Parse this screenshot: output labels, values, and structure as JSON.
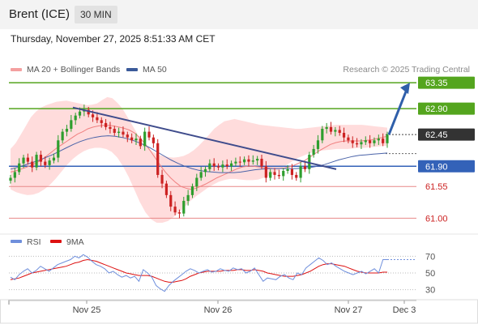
{
  "header": {
    "instrument": "Brent (ICE)",
    "timeframe": "30 MIN"
  },
  "datetime": "Thursday, November 27, 2025 8:51:33 AM CET",
  "legend": [
    {
      "label": "MA 20 + Bollinger Bands",
      "color": "#f4a0a0"
    },
    {
      "label": "MA 50",
      "color": "#3b5a9a"
    }
  ],
  "copyright": "Research © 2025 Trading Central",
  "colors": {
    "up": "#2e9e2e",
    "down": "#cc2222",
    "resistance": "#54a51e",
    "pivot": "#3362b8",
    "support": "#e88888",
    "last": "#333333",
    "band": "#ffd6d6",
    "rsi": "#6f8fdc",
    "rsi_ma": "#dd1111"
  },
  "chart_data": [
    {
      "type": "candlestick",
      "x_labels": [
        "Nov 25",
        "Nov 26",
        "Nov 27",
        "Dec 3"
      ],
      "ylim": [
        60.85,
        63.45
      ],
      "levels": [
        {
          "value": 63.35,
          "label": "63.35",
          "kind": "resistance"
        },
        {
          "value": 62.9,
          "label": "62.90",
          "kind": "resistance"
        },
        {
          "value": 62.45,
          "label": "62.45",
          "kind": "last"
        },
        {
          "value": 61.9,
          "label": "61.90",
          "kind": "pivot"
        },
        {
          "value": 61.55,
          "label": "61.55",
          "kind": "support"
        },
        {
          "value": 61.0,
          "label": "61.00",
          "kind": "support"
        }
      ],
      "close": [
        61.7,
        61.8,
        61.95,
        62.05,
        61.98,
        61.88,
        62.1,
        61.98,
        61.92,
        62.0,
        62.05,
        62.35,
        62.5,
        62.55,
        62.7,
        62.78,
        62.85,
        62.88,
        62.8,
        62.75,
        62.7,
        62.65,
        62.58,
        62.55,
        62.48,
        62.5,
        62.45,
        62.4,
        62.35,
        62.38,
        62.25,
        62.5,
        62.4,
        62.3,
        61.75,
        61.6,
        61.4,
        61.2,
        61.1,
        61.08,
        61.3,
        61.4,
        61.55,
        61.7,
        61.8,
        61.85,
        61.95,
        61.9,
        61.88,
        61.93,
        61.9,
        61.95,
        61.98,
        61.97,
        62.02,
        61.98,
        62.0,
        62.03,
        61.9,
        61.7,
        61.8,
        61.75,
        61.73,
        61.82,
        61.85,
        61.75,
        61.7,
        61.9,
        61.85,
        62.1,
        62.2,
        62.35,
        62.55,
        62.58,
        62.5,
        62.53,
        62.48,
        62.4,
        62.35,
        62.3,
        62.28,
        62.32,
        62.35,
        62.3,
        62.35,
        62.38,
        62.3,
        62.45
      ],
      "ma20": [
        61.8,
        61.82,
        61.85,
        61.88,
        61.92,
        61.96,
        62.01,
        62.08,
        62.15,
        62.22,
        62.28,
        62.34,
        62.4,
        62.46,
        62.5,
        62.55,
        62.58,
        62.6,
        62.61,
        62.61,
        62.6,
        62.58,
        62.56,
        62.53,
        62.48,
        62.4,
        62.3,
        62.18,
        62.05,
        61.92,
        61.8,
        61.7,
        61.62,
        61.55,
        61.52,
        61.5,
        61.52,
        61.56,
        61.6,
        61.65,
        61.7,
        61.74,
        61.78,
        61.82,
        61.86,
        61.89,
        61.9,
        61.9,
        61.89,
        61.88,
        61.87,
        61.86,
        61.86,
        61.87,
        61.89,
        61.92,
        61.96,
        62.0,
        62.06,
        62.12,
        62.18,
        62.23,
        62.28,
        62.31,
        62.33,
        62.34,
        62.34,
        62.34,
        62.34,
        62.35,
        62.36,
        62.38,
        62.4,
        62.42
      ],
      "bb_upper": [
        62.2,
        62.3,
        62.45,
        62.6,
        62.75,
        62.85,
        62.92,
        62.96,
        62.99,
        63.02,
        63.03,
        63.04,
        63.02,
        63.0,
        62.98,
        62.96,
        62.97,
        62.99,
        63.05,
        63.1,
        63.08,
        63.0,
        62.9,
        62.75,
        62.6,
        62.45,
        62.3,
        62.22,
        62.15,
        62.1,
        62.08,
        62.06,
        62.05,
        62.06,
        62.08,
        62.12,
        62.18,
        62.26,
        62.35,
        62.45,
        62.55,
        62.62,
        62.68,
        62.7,
        62.72,
        62.7,
        62.68,
        62.66,
        62.64,
        62.62,
        62.61,
        62.6,
        62.59,
        62.58,
        62.57,
        62.56,
        62.55,
        62.55,
        62.56,
        62.57,
        62.58,
        62.59,
        62.6,
        62.61,
        62.62,
        62.62,
        62.62,
        62.62,
        62.62,
        62.62,
        62.61,
        62.6,
        62.59,
        62.58,
        62.57
      ],
      "bb_lower": [
        61.5,
        61.45,
        61.42,
        61.4,
        61.41,
        61.44,
        61.5,
        61.58,
        61.68,
        61.8,
        61.92,
        62.02,
        62.1,
        62.16,
        62.2,
        62.22,
        62.22,
        62.2,
        62.15,
        62.05,
        61.9,
        61.72,
        61.5,
        61.28,
        61.1,
        60.98,
        60.92,
        60.92,
        60.95,
        61.02,
        61.1,
        61.2,
        61.3,
        61.38,
        61.45,
        61.52,
        61.58,
        61.63,
        61.66,
        61.68,
        61.68,
        61.67,
        61.66,
        61.66,
        61.67,
        61.7,
        61.74,
        61.79,
        61.85,
        61.92,
        61.98,
        62.04,
        62.08,
        62.12,
        62.15,
        62.17,
        62.18,
        62.19,
        62.2,
        62.2,
        62.2,
        62.21,
        62.22,
        62.22,
        62.23,
        62.24,
        62.25,
        62.26
      ],
      "ma50": [
        61.85,
        61.88,
        61.92,
        61.96,
        62.0,
        62.05,
        62.1,
        62.16,
        62.22,
        62.28,
        62.33,
        62.37,
        62.4,
        62.42,
        62.43,
        62.42,
        62.4,
        62.37,
        62.33,
        62.28,
        62.22,
        62.15,
        62.08,
        62.01,
        61.95,
        61.9,
        61.86,
        61.83,
        61.81,
        61.8,
        61.79,
        61.79,
        61.79,
        61.8,
        61.82,
        61.84,
        61.85,
        61.86,
        61.86,
        61.86,
        61.86,
        61.86,
        61.87,
        61.88,
        61.9,
        61.93,
        61.97,
        62.01,
        62.04,
        62.07,
        62.09,
        62.1,
        62.11,
        62.12,
        62.13
      ],
      "arrow": {
        "from": 62.45,
        "to": 63.35
      },
      "trendline": {
        "from": 62.92,
        "to": 61.85
      }
    },
    {
      "type": "line",
      "title": "RSI",
      "ylim": [
        20,
        80
      ],
      "y_ticks": [
        70,
        50,
        30
      ],
      "series": [
        {
          "name": "RSI",
          "values": [
            45,
            42,
            48,
            52,
            55,
            50,
            53,
            58,
            55,
            52,
            56,
            60,
            62,
            64,
            66,
            70,
            68,
            72,
            69,
            64,
            60,
            58,
            55,
            50,
            52,
            48,
            45,
            47,
            44,
            46,
            40,
            54,
            50,
            45,
            35,
            31,
            28,
            35,
            40,
            44,
            48,
            52,
            55,
            53,
            50,
            52,
            54,
            51,
            52,
            55,
            53,
            52,
            56,
            54,
            55,
            50,
            52,
            56,
            48,
            40,
            44,
            43,
            42,
            46,
            48,
            44,
            42,
            50,
            48,
            56,
            60,
            64,
            68,
            65,
            60,
            62,
            58,
            55,
            52,
            50,
            48,
            50,
            52,
            49,
            52,
            55,
            50,
            66,
            66
          ]
        },
        {
          "name": "9MA",
          "values": [
            42,
            43,
            44,
            46,
            48,
            50,
            51,
            52,
            53,
            54,
            55,
            56,
            57,
            58,
            60,
            62,
            63,
            65,
            66,
            65,
            64,
            62,
            60,
            58,
            56,
            54,
            52,
            50,
            49,
            48,
            47,
            47,
            47,
            46,
            44,
            42,
            40,
            39,
            39,
            40,
            41,
            43,
            46,
            48,
            50,
            51,
            52,
            52,
            52,
            52,
            53,
            53,
            53,
            54,
            54,
            53,
            53,
            54,
            53,
            52,
            50,
            49,
            48,
            47,
            46,
            46,
            46,
            47,
            48,
            50,
            52,
            55,
            58,
            60,
            61,
            61,
            60,
            59,
            58,
            56,
            54,
            52,
            51,
            50,
            50,
            50,
            50,
            51,
            51
          ]
        }
      ]
    }
  ]
}
